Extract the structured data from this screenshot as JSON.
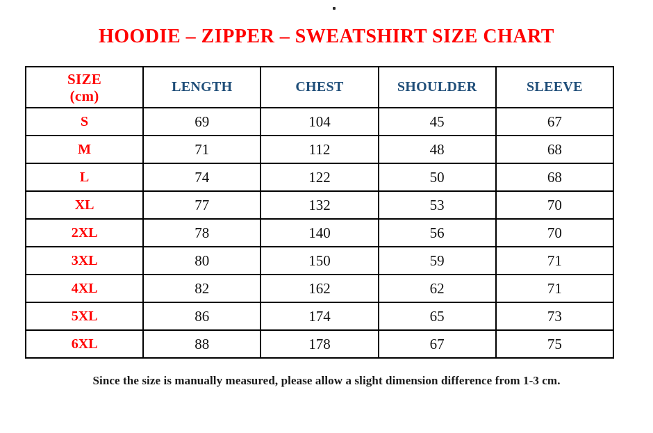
{
  "stray_mark": {
    "description": "tiny dark dot artifact at top center"
  },
  "title": {
    "text": "HOODIE – ZIPPER – SWEATSHIRT SIZE CHART"
  },
  "colors": {
    "title_red": "#ff0000",
    "header_blue": "#1f4e79",
    "data_text": "#111111",
    "border": "#000000",
    "background": "#ffffff"
  },
  "table": {
    "columns": [
      "SIZE\n(cm)",
      "LENGTH",
      "CHEST",
      "SHOULDER",
      "SLEEVE"
    ],
    "rows": [
      {
        "size": "S",
        "values": [
          69,
          104,
          45,
          67
        ]
      },
      {
        "size": "M",
        "values": [
          71,
          112,
          48,
          68
        ]
      },
      {
        "size": "L",
        "values": [
          74,
          122,
          50,
          68
        ]
      },
      {
        "size": "XL",
        "values": [
          77,
          132,
          53,
          70
        ]
      },
      {
        "size": "2XL",
        "values": [
          78,
          140,
          56,
          70
        ]
      },
      {
        "size": "3XL",
        "values": [
          80,
          150,
          59,
          71
        ]
      },
      {
        "size": "4XL",
        "values": [
          82,
          162,
          62,
          71
        ]
      },
      {
        "size": "5XL",
        "values": [
          86,
          174,
          65,
          73
        ]
      },
      {
        "size": "6XL",
        "values": [
          88,
          178,
          67,
          75
        ]
      }
    ]
  },
  "footnote": {
    "text": "Since the size is manually measured, please allow a slight dimension difference from 1-3 cm."
  }
}
